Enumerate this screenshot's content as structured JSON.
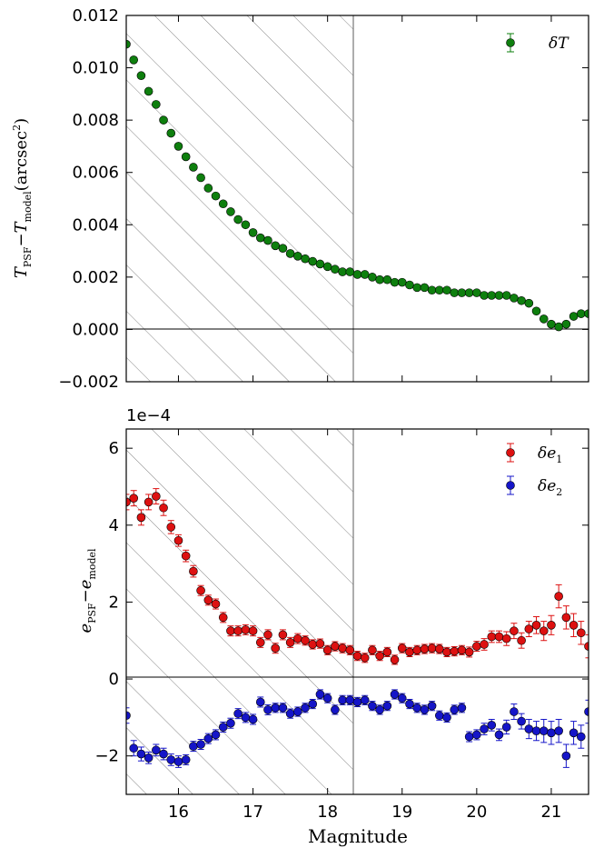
{
  "chart_data": [
    {
      "type": "scatter",
      "title": "",
      "xlabel": "",
      "ylabel_parts": [
        "T",
        "PSF",
        "−T",
        "model",
        "(arcsec",
        "2",
        ")"
      ],
      "xlim": [
        15.3,
        21.5
      ],
      "ylim": [
        -0.002,
        0.012
      ],
      "yticks": [
        -0.002,
        0.0,
        0.002,
        0.004,
        0.006,
        0.008,
        0.01,
        0.012
      ],
      "ytick_labels": [
        "−0.002",
        "0.000",
        "0.002",
        "0.004",
        "0.006",
        "0.008",
        "0.010",
        "0.012"
      ],
      "hatched_region": [
        15.3,
        18.35
      ],
      "vline": 18.35,
      "hline": 0,
      "legend_position": "top-right",
      "grid": false,
      "series": [
        {
          "name": "δT",
          "color": "#0e7f0e",
          "x": [
            15.3,
            15.4,
            15.5,
            15.6,
            15.7,
            15.8,
            15.9,
            16.0,
            16.1,
            16.2,
            16.3,
            16.4,
            16.5,
            16.6,
            16.7,
            16.8,
            16.9,
            17.0,
            17.1,
            17.2,
            17.3,
            17.4,
            17.5,
            17.6,
            17.7,
            17.8,
            17.9,
            18.0,
            18.1,
            18.2,
            18.3,
            18.4,
            18.5,
            18.6,
            18.7,
            18.8,
            18.9,
            19.0,
            19.1,
            19.2,
            19.3,
            19.4,
            19.5,
            19.6,
            19.7,
            19.8,
            19.9,
            20.0,
            20.1,
            20.2,
            20.3,
            20.4,
            20.5,
            20.6,
            20.7,
            20.8,
            20.9,
            21.0,
            21.1,
            21.2,
            21.3,
            21.4,
            21.5
          ],
          "y": [
            0.0109,
            0.0103,
            0.0097,
            0.0091,
            0.0086,
            0.008,
            0.0075,
            0.007,
            0.0066,
            0.0062,
            0.0058,
            0.0054,
            0.0051,
            0.0048,
            0.0045,
            0.0042,
            0.004,
            0.0037,
            0.0035,
            0.0034,
            0.0032,
            0.0031,
            0.0029,
            0.0028,
            0.0027,
            0.0026,
            0.0025,
            0.0024,
            0.0023,
            0.0022,
            0.0022,
            0.0021,
            0.0021,
            0.002,
            0.0019,
            0.0019,
            0.0018,
            0.0018,
            0.0017,
            0.0016,
            0.0016,
            0.0015,
            0.0015,
            0.0015,
            0.0014,
            0.0014,
            0.0014,
            0.0014,
            0.0013,
            0.0013,
            0.0013,
            0.0013,
            0.0012,
            0.0011,
            0.001,
            0.0007,
            0.0004,
            0.0002,
            0.0001,
            0.0002,
            0.0005,
            0.0006,
            0.0006
          ]
        }
      ]
    },
    {
      "type": "scatter",
      "title": "",
      "xlabel": "Magnitude",
      "ylabel_parts": [
        "e",
        "PSF",
        "−e",
        "model"
      ],
      "scale_label": "1e−4",
      "xlim": [
        15.3,
        21.5
      ],
      "ylim": [
        -3,
        6.5
      ],
      "yticks": [
        -2,
        0,
        2,
        4,
        6
      ],
      "ytick_labels": [
        "−2",
        "0",
        "2",
        "4",
        "6"
      ],
      "xticks": [
        16,
        17,
        18,
        19,
        20,
        21
      ],
      "xtick_labels": [
        "16",
        "17",
        "18",
        "19",
        "20",
        "21"
      ],
      "hatched_region": [
        15.3,
        18.35
      ],
      "vline": 18.35,
      "hline": 0,
      "legend_position": "top-right",
      "grid": false,
      "series": [
        {
          "name": "δe",
          "name_sub": "1",
          "color": "#dd1111",
          "x": [
            15.3,
            15.4,
            15.5,
            15.6,
            15.7,
            15.8,
            15.9,
            16.0,
            16.1,
            16.2,
            16.3,
            16.4,
            16.5,
            16.6,
            16.7,
            16.8,
            16.9,
            17.0,
            17.1,
            17.2,
            17.3,
            17.4,
            17.5,
            17.6,
            17.7,
            17.8,
            17.9,
            18.0,
            18.1,
            18.2,
            18.3,
            18.4,
            18.5,
            18.6,
            18.7,
            18.8,
            18.9,
            19.0,
            19.1,
            19.2,
            19.3,
            19.4,
            19.5,
            19.6,
            19.7,
            19.8,
            19.9,
            20.0,
            20.1,
            20.2,
            20.3,
            20.4,
            20.5,
            20.6,
            20.7,
            20.8,
            20.9,
            21.0,
            21.1,
            21.2,
            21.3,
            21.4,
            21.5
          ],
          "y": [
            4.6,
            4.7,
            4.2,
            4.6,
            4.75,
            4.45,
            3.95,
            3.6,
            3.2,
            2.8,
            2.3,
            2.05,
            1.95,
            1.6,
            1.25,
            1.25,
            1.28,
            1.25,
            0.95,
            1.15,
            0.8,
            1.15,
            0.95,
            1.05,
            1.0,
            0.9,
            0.92,
            0.75,
            0.85,
            0.8,
            0.75,
            0.6,
            0.55,
            0.75,
            0.6,
            0.7,
            0.5,
            0.8,
            0.7,
            0.75,
            0.78,
            0.8,
            0.78,
            0.7,
            0.72,
            0.75,
            0.7,
            0.85,
            0.9,
            1.1,
            1.1,
            1.05,
            1.25,
            1.0,
            1.3,
            1.4,
            1.25,
            1.4,
            2.15,
            1.6,
            1.4,
            1.2,
            0.85
          ],
          "err": [
            0.2,
            0.2,
            0.2,
            0.2,
            0.2,
            0.2,
            0.17,
            0.15,
            0.15,
            0.15,
            0.13,
            0.13,
            0.13,
            0.13,
            0.13,
            0.13,
            0.13,
            0.13,
            0.13,
            0.13,
            0.13,
            0.13,
            0.13,
            0.13,
            0.12,
            0.12,
            0.12,
            0.12,
            0.12,
            0.12,
            0.12,
            0.12,
            0.12,
            0.12,
            0.12,
            0.12,
            0.12,
            0.12,
            0.12,
            0.12,
            0.12,
            0.12,
            0.12,
            0.12,
            0.12,
            0.12,
            0.13,
            0.13,
            0.15,
            0.15,
            0.15,
            0.18,
            0.2,
            0.2,
            0.2,
            0.22,
            0.25,
            0.25,
            0.3,
            0.3,
            0.3,
            0.3,
            0.3
          ]
        },
        {
          "name": "δe",
          "name_sub": "2",
          "color": "#1515c8",
          "x": [
            15.3,
            15.4,
            15.5,
            15.6,
            15.7,
            15.8,
            15.9,
            16.0,
            16.1,
            16.2,
            16.3,
            16.4,
            16.5,
            16.6,
            16.7,
            16.8,
            16.9,
            17.0,
            17.1,
            17.2,
            17.3,
            17.4,
            17.5,
            17.6,
            17.7,
            17.8,
            17.9,
            18.0,
            18.1,
            18.2,
            18.3,
            18.4,
            18.5,
            18.6,
            18.7,
            18.8,
            18.9,
            19.0,
            19.1,
            19.2,
            19.3,
            19.4,
            19.5,
            19.6,
            19.7,
            19.8,
            19.9,
            20.0,
            20.1,
            20.2,
            20.3,
            20.4,
            20.5,
            20.6,
            20.7,
            20.8,
            20.9,
            21.0,
            21.1,
            21.2,
            21.3,
            21.4,
            21.5
          ],
          "y": [
            -0.95,
            -1.8,
            -1.95,
            -2.05,
            -1.85,
            -1.95,
            -2.1,
            -2.15,
            -2.1,
            -1.75,
            -1.7,
            -1.55,
            -1.45,
            -1.25,
            -1.15,
            -0.9,
            -1.0,
            -1.05,
            -0.6,
            -0.8,
            -0.75,
            -0.75,
            -0.9,
            -0.85,
            -0.75,
            -0.65,
            -0.4,
            -0.5,
            -0.8,
            -0.55,
            -0.55,
            -0.6,
            -0.55,
            -0.7,
            -0.8,
            -0.7,
            -0.4,
            -0.5,
            -0.65,
            -0.75,
            -0.8,
            -0.7,
            -0.95,
            -1.0,
            -0.8,
            -0.75,
            -1.5,
            -1.45,
            -1.3,
            -1.2,
            -1.45,
            -1.25,
            -0.85,
            -1.1,
            -1.3,
            -1.35,
            -1.35,
            -1.4,
            -1.35,
            -2.0,
            -1.4,
            -1.5,
            -0.85
          ],
          "err": [
            0.2,
            0.2,
            0.18,
            0.15,
            0.15,
            0.15,
            0.15,
            0.15,
            0.13,
            0.13,
            0.13,
            0.13,
            0.13,
            0.13,
            0.13,
            0.13,
            0.13,
            0.13,
            0.13,
            0.13,
            0.12,
            0.12,
            0.12,
            0.12,
            0.12,
            0.12,
            0.12,
            0.12,
            0.12,
            0.12,
            0.12,
            0.12,
            0.12,
            0.12,
            0.12,
            0.12,
            0.12,
            0.12,
            0.12,
            0.12,
            0.12,
            0.12,
            0.12,
            0.12,
            0.12,
            0.12,
            0.13,
            0.13,
            0.15,
            0.15,
            0.15,
            0.18,
            0.2,
            0.2,
            0.25,
            0.25,
            0.3,
            0.3,
            0.3,
            0.3,
            0.3,
            0.3,
            0.3
          ]
        }
      ]
    }
  ]
}
